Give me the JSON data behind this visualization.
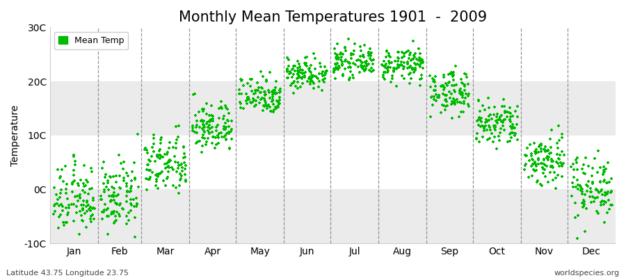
{
  "title": "Monthly Mean Temperatures 1901  -  2009",
  "ylabel": "Temperature",
  "background_color": "#ffffff",
  "plot_bg_color": "#ffffff",
  "point_color": "#00bb00",
  "point_size": 12,
  "ylim": [
    -10,
    30
  ],
  "yticks": [
    -10,
    0,
    10,
    20,
    30
  ],
  "ytick_labels": [
    "-10C",
    "0C",
    "10C",
    "20C",
    "30C"
  ],
  "month_labels": [
    "Jan",
    "Feb",
    "Mar",
    "Apr",
    "May",
    "Jun",
    "Jul",
    "Aug",
    "Sep",
    "Oct",
    "Nov",
    "Dec"
  ],
  "subtitle_left": "Latitude 43.75 Longitude 23.75",
  "subtitle_right": "worldspecies.org",
  "legend_label": "Mean Temp",
  "monthly_means": [
    -2.0,
    -1.5,
    4.5,
    11.5,
    17.5,
    21.5,
    23.5,
    23.0,
    18.0,
    12.0,
    5.5,
    0.5
  ],
  "monthly_stds": [
    3.2,
    3.0,
    2.8,
    2.3,
    1.8,
    1.5,
    1.3,
    1.5,
    2.0,
    2.2,
    2.5,
    3.0
  ],
  "n_points": 109,
  "title_fontsize": 15,
  "label_fontsize": 10,
  "tick_fontsize": 10,
  "band_color": "#ebebeb",
  "dashed_line_color": "#888888"
}
